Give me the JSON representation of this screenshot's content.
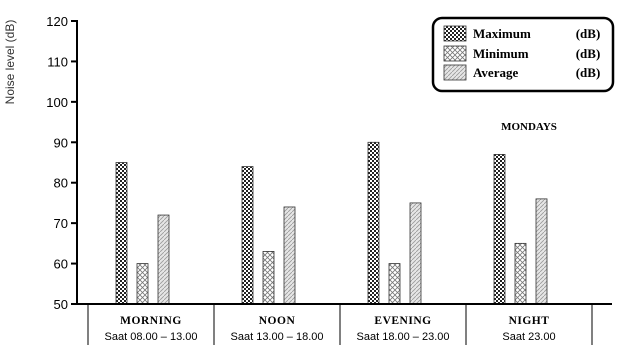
{
  "chart_data": {
    "type": "bar",
    "ylabel": "Noise level (dB)",
    "ylim": [
      50,
      120
    ],
    "yticks": [
      50,
      60,
      70,
      80,
      90,
      100,
      110,
      120
    ],
    "annotation": "MONDAYS",
    "categories": [
      {
        "label": "MORNING",
        "sub": "Saat 08.00 – 13.00"
      },
      {
        "label": "NOON",
        "sub": "Saat 13.00 – 18.00"
      },
      {
        "label": "EVENING",
        "sub": "Saat 18.00 – 23.00"
      },
      {
        "label": "NIGHT",
        "sub": "Saat 23.00"
      }
    ],
    "series": [
      {
        "name": "Maximum",
        "unit": "(dB)",
        "pattern": "checker",
        "values": [
          85,
          84,
          90,
          87
        ]
      },
      {
        "name": "Minimum",
        "unit": "(dB)",
        "pattern": "cross",
        "values": [
          60,
          63,
          60,
          65
        ]
      },
      {
        "name": "Average",
        "unit": "(dB)",
        "pattern": "diag",
        "values": [
          72,
          74,
          75,
          76
        ]
      }
    ],
    "legend_position": "top-right",
    "grid": false
  }
}
